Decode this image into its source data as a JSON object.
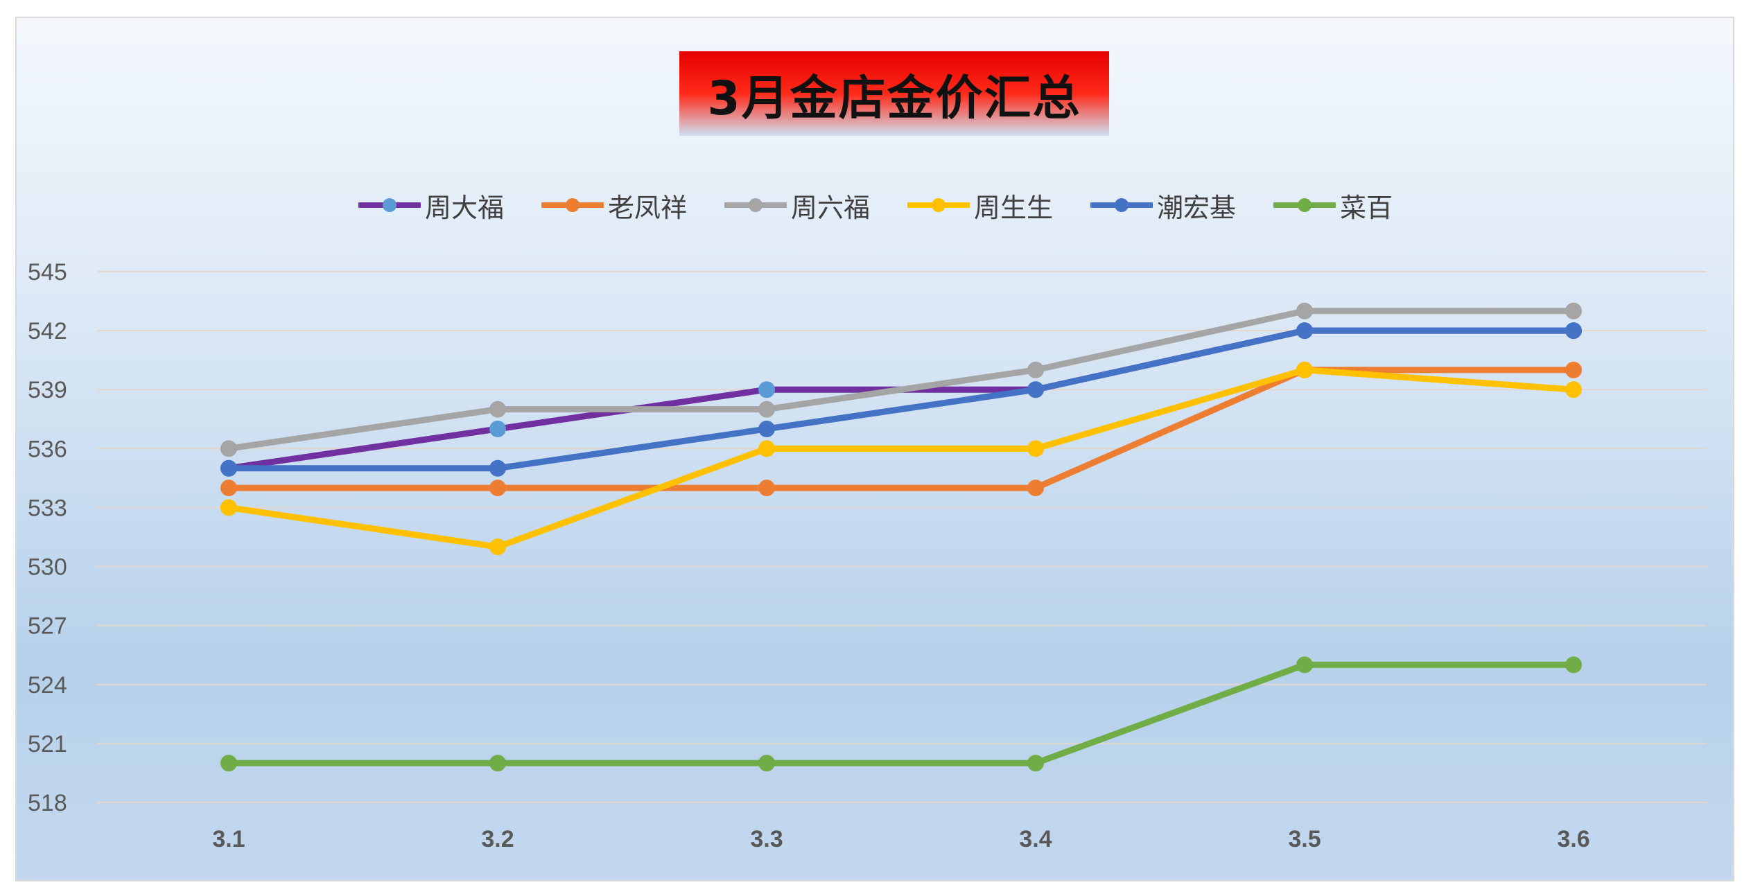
{
  "chart_data": {
    "type": "line",
    "title": "3月金店金价汇总",
    "categories": [
      "3.1",
      "3.2",
      "3.3",
      "3.4",
      "3.5",
      "3.6"
    ],
    "yticks": [
      "518",
      "521",
      "524",
      "527",
      "530",
      "533",
      "536",
      "539",
      "542",
      "545"
    ],
    "ylim": [
      518,
      545
    ],
    "grid": true,
    "legend_position": "top",
    "series": [
      {
        "name": "周大福",
        "values": [
          535,
          537,
          539,
          539,
          542,
          542
        ],
        "color": "#7030a0",
        "marker_color": "#5b9bd5"
      },
      {
        "name": "老凤祥",
        "values": [
          534,
          534,
          534,
          534,
          540,
          540
        ],
        "color": "#ed7d31",
        "marker_color": "#ed7d31"
      },
      {
        "name": "周六福",
        "values": [
          536,
          538,
          538,
          540,
          543,
          543
        ],
        "color": "#a5a5a5",
        "marker_color": "#a5a5a5"
      },
      {
        "name": "周生生",
        "values": [
          533,
          531,
          536,
          536,
          540,
          539
        ],
        "color": "#ffc000",
        "marker_color": "#ffc000"
      },
      {
        "name": "潮宏基",
        "values": [
          535,
          535,
          537,
          539,
          542,
          542
        ],
        "color": "#4472c4",
        "marker_color": "#4472c4"
      },
      {
        "name": "菜百",
        "values": [
          520,
          520,
          520,
          520,
          525,
          525
        ],
        "color": "#70ad47",
        "marker_color": "#70ad47"
      }
    ]
  }
}
